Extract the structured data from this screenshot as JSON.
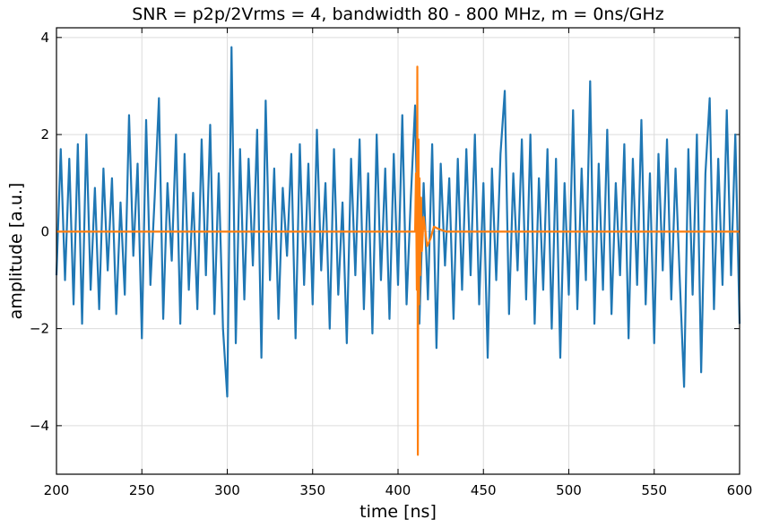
{
  "chart_data": {
    "type": "line",
    "title": "SNR = p2p/2Vrms = 4, bandwidth 80 - 800 MHz, m = 0ns/GHz",
    "xlabel": "time [ns]",
    "ylabel": "amplitude [a.u.]",
    "xlim": [
      200,
      600
    ],
    "xticks": [
      200,
      250,
      300,
      350,
      400,
      450,
      500,
      550,
      600
    ],
    "ylim": [
      -5,
      4.2
    ],
    "yticks": [
      {
        "value": -4,
        "label": "−4"
      },
      {
        "value": -2,
        "label": "−2"
      },
      0,
      2,
      4
    ],
    "grid": true,
    "x": [
      200,
      202.5,
      205,
      207.5,
      210,
      212.5,
      215,
      217.5,
      220,
      222.5,
      225,
      227.5,
      230,
      232.5,
      235,
      237.5,
      240,
      242.5,
      245,
      247.5,
      250,
      252.5,
      255,
      257.5,
      260,
      262.5,
      265,
      267.5,
      270,
      272.5,
      275,
      277.5,
      280,
      282.5,
      285,
      287.5,
      290,
      292.5,
      295,
      297.5,
      300,
      302.5,
      305,
      307.5,
      310,
      312.5,
      315,
      317.5,
      320,
      322.5,
      325,
      327.5,
      330,
      332.5,
      335,
      337.5,
      340,
      342.5,
      345,
      347.5,
      350,
      352.5,
      355,
      357.5,
      360,
      362.5,
      365,
      367.5,
      370,
      372.5,
      375,
      377.5,
      380,
      382.5,
      385,
      387.5,
      390,
      392.5,
      395,
      397.5,
      400,
      402.5,
      405,
      407.5,
      410,
      412.5,
      415,
      417.5,
      420,
      422.5,
      425,
      427.5,
      430,
      432.5,
      435,
      437.5,
      440,
      442.5,
      445,
      447.5,
      450,
      452.5,
      455,
      457.5,
      460,
      462.5,
      465,
      467.5,
      470,
      472.5,
      475,
      477.5,
      480,
      482.5,
      485,
      487.5,
      490,
      492.5,
      495,
      497.5,
      500,
      502.5,
      505,
      507.5,
      510,
      512.5,
      515,
      517.5,
      520,
      522.5,
      525,
      527.5,
      530,
      532.5,
      535,
      537.5,
      540,
      542.5,
      545,
      547.5,
      550,
      552.5,
      555,
      557.5,
      560,
      562.5,
      565,
      567.5,
      570,
      572.5,
      575,
      577.5,
      580,
      582.5,
      585,
      587.5,
      590,
      592.5,
      595,
      597.5,
      600
    ],
    "series": [
      {
        "color": "#1f77b4",
        "values": [
          -0.9,
          1.7,
          -1.0,
          1.5,
          -1.5,
          1.8,
          -1.9,
          2.0,
          -1.2,
          0.9,
          -1.6,
          1.3,
          -0.8,
          1.1,
          -1.7,
          0.6,
          -1.3,
          2.4,
          -0.5,
          1.4,
          -2.2,
          2.3,
          -1.1,
          0.7,
          2.75,
          -1.8,
          1.0,
          -0.6,
          2.0,
          -1.9,
          1.6,
          -1.2,
          0.8,
          -1.6,
          1.9,
          -0.9,
          2.2,
          -1.7,
          1.2,
          -2.0,
          -3.4,
          3.8,
          -2.3,
          1.7,
          -1.4,
          1.5,
          -0.7,
          2.1,
          -2.6,
          2.7,
          -1.0,
          1.3,
          -1.8,
          0.9,
          -0.5,
          1.6,
          -2.2,
          1.8,
          -1.1,
          1.4,
          -1.5,
          2.1,
          -0.8,
          1.0,
          -2.0,
          1.7,
          -1.3,
          0.6,
          -2.3,
          1.5,
          -0.9,
          1.9,
          -1.6,
          1.2,
          -2.1,
          2.0,
          -1.0,
          1.3,
          -1.8,
          1.6,
          -1.1,
          2.4,
          -1.5,
          0.7,
          2.6,
          -1.9,
          1.0,
          -1.4,
          1.8,
          -2.4,
          1.4,
          -0.7,
          1.1,
          -1.8,
          1.5,
          -1.2,
          1.7,
          -0.9,
          2.0,
          -1.5,
          1.0,
          -2.6,
          1.3,
          -1.0,
          1.6,
          2.9,
          -1.7,
          1.2,
          -0.8,
          1.9,
          -1.4,
          2.0,
          -1.9,
          1.1,
          -1.2,
          1.7,
          -2.0,
          1.5,
          -2.6,
          1.0,
          -1.3,
          2.5,
          -1.6,
          1.3,
          -1.0,
          3.1,
          -1.9,
          1.4,
          -1.2,
          2.1,
          -1.7,
          1.0,
          -0.9,
          1.8,
          -2.2,
          1.5,
          -1.1,
          2.3,
          -1.5,
          1.2,
          -2.3,
          1.6,
          -0.8,
          1.9,
          -1.4,
          1.3,
          -1.0,
          -3.2,
          1.7,
          -1.3,
          2.0,
          -2.9,
          1.2,
          2.75,
          -1.6,
          1.5,
          -1.1,
          2.5,
          -0.9,
          2.0,
          -1.9
        ]
      },
      {
        "color": "#ff7f0e",
        "x": [
          200,
          410,
          410.5,
          411,
          411.3,
          411.6,
          412,
          412.3,
          412.6,
          413,
          413.5,
          414,
          415,
          417,
          419,
          421,
          424,
          428,
          600
        ],
        "values": [
          0,
          0,
          1.2,
          -1.2,
          3.4,
          -4.6,
          1.9,
          -1.5,
          1.1,
          -0.9,
          0.7,
          -0.4,
          0.3,
          -0.3,
          -0.15,
          0.1,
          0.05,
          0,
          0
        ]
      }
    ]
  }
}
